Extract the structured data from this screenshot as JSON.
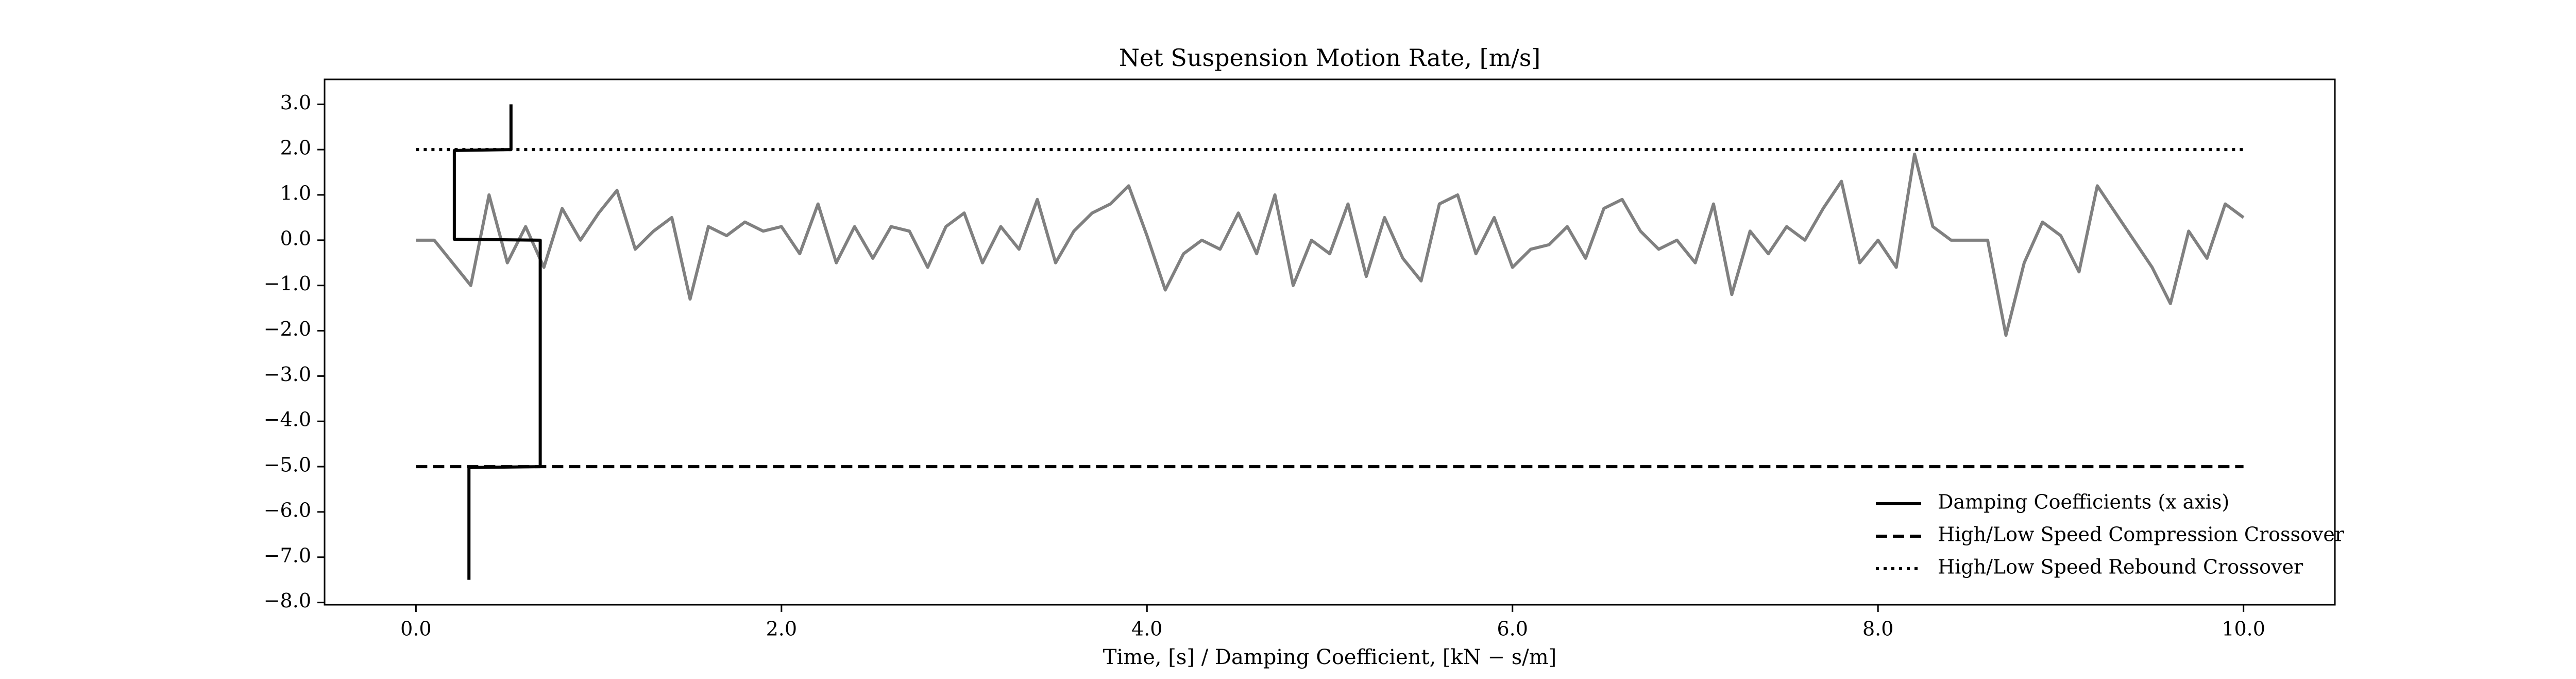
{
  "chart_data": {
    "type": "line",
    "title": "Net Suspension Motion Rate, [m/s]",
    "x_label": "Time, [s] / Damping Coefficient, [kN − s/m]",
    "xlim": [
      -0.5,
      10.5
    ],
    "ylim": [
      -8.05,
      3.55
    ],
    "xticks": [
      {
        "value": 0,
        "label": "0.0"
      },
      {
        "value": 2,
        "label": "2.0"
      },
      {
        "value": 4,
        "label": "4.0"
      },
      {
        "value": 6,
        "label": "6.0"
      },
      {
        "value": 8,
        "label": "8.0"
      },
      {
        "value": 10,
        "label": "10.0"
      }
    ],
    "yticks": [
      {
        "value": 3,
        "label": "3.0"
      },
      {
        "value": 2,
        "label": "2.0"
      },
      {
        "value": 1,
        "label": "1.0"
      },
      {
        "value": 0,
        "label": "0.0"
      },
      {
        "value": -1,
        "label": "−1.0"
      },
      {
        "value": -2,
        "label": "−2.0"
      },
      {
        "value": -3,
        "label": "−3.0"
      },
      {
        "value": -4,
        "label": "−4.0"
      },
      {
        "value": -5,
        "label": "−5.0"
      },
      {
        "value": -6,
        "label": "−6.0"
      },
      {
        "value": -7,
        "label": "−7.0"
      },
      {
        "value": -8,
        "label": "−8.0"
      }
    ],
    "legend": "lower right",
    "series": [
      {
        "color": "#808080",
        "style": "solid",
        "x": [
          0.0,
          0.1,
          0.2,
          0.3,
          0.4,
          0.5,
          0.6,
          0.7,
          0.8,
          0.9,
          1.0,
          1.1,
          1.2,
          1.3,
          1.4,
          1.5,
          1.6,
          1.7,
          1.8,
          1.9,
          2.0,
          2.1,
          2.2,
          2.3,
          2.4,
          2.5,
          2.6,
          2.7,
          2.8,
          2.9,
          3.0,
          3.1,
          3.2,
          3.3,
          3.4,
          3.5,
          3.6,
          3.7,
          3.8,
          3.9,
          4.0,
          4.1,
          4.2,
          4.3,
          4.4,
          4.5,
          4.6,
          4.7,
          4.8,
          4.9,
          5.0,
          5.1,
          5.2,
          5.3,
          5.4,
          5.5,
          5.6,
          5.7,
          5.8,
          5.9,
          6.0,
          6.1,
          6.2,
          6.3,
          6.4,
          6.5,
          6.6,
          6.7,
          6.8,
          6.9,
          7.0,
          7.1,
          7.2,
          7.3,
          7.4,
          7.5,
          7.6,
          7.7,
          7.8,
          7.9,
          8.0,
          8.1,
          8.2,
          8.3,
          8.4,
          8.5,
          8.6,
          8.7,
          8.8,
          8.9,
          9.0,
          9.1,
          9.2,
          9.3,
          9.4,
          9.5,
          9.6,
          9.7,
          9.8,
          9.9,
          10.0
        ],
        "values": [
          0.0,
          0.0,
          -0.5,
          -1.0,
          1.0,
          -0.5,
          0.3,
          -0.6,
          0.7,
          0.0,
          0.6,
          1.1,
          -0.2,
          0.2,
          0.5,
          -1.3,
          0.3,
          0.1,
          0.4,
          0.2,
          0.3,
          -0.3,
          0.8,
          -0.5,
          0.3,
          -0.4,
          0.3,
          0.2,
          -0.6,
          0.3,
          0.6,
          -0.5,
          0.3,
          -0.2,
          0.9,
          -0.5,
          0.2,
          0.6,
          0.8,
          1.2,
          0.1,
          -1.1,
          -0.3,
          0.0,
          -0.2,
          0.6,
          -0.3,
          1.0,
          -1.0,
          0.0,
          -0.3,
          0.8,
          -0.8,
          0.5,
          -0.4,
          -0.9,
          0.8,
          1.0,
          -0.3,
          0.5,
          -0.6,
          -0.2,
          -0.1,
          0.3,
          -0.4,
          0.7,
          0.9,
          0.2,
          -0.2,
          0.0,
          -0.5,
          0.8,
          -1.2,
          0.2,
          -0.3,
          0.3,
          0.0,
          0.7,
          1.3,
          -0.5,
          0.0,
          -0.6,
          1.9,
          0.3,
          0.0,
          0.0,
          0.0,
          -2.1,
          -0.5,
          0.4,
          0.1,
          -0.7,
          1.2,
          0.6,
          0.0,
          -0.6,
          -1.4,
          0.2,
          -0.4,
          0.8,
          0.5
        ]
      },
      {
        "name": "Damping Coefficients (x axis)",
        "color": "#000000",
        "style": "solid",
        "x": [
          0.52,
          0.52,
          0.21,
          0.21,
          0.68,
          0.68,
          0.29,
          0.29
        ],
        "values": [
          3.0,
          2.0,
          1.98,
          0.02,
          0.0,
          -5.0,
          -5.02,
          -7.5
        ]
      },
      {
        "name": "High/Low Speed Compression Crossover",
        "color": "#000000",
        "style": "dashed",
        "x": [
          0,
          10
        ],
        "values": [
          -5,
          -5
        ]
      },
      {
        "name": "High/Low Speed Rebound Crossover",
        "color": "#000000",
        "style": "dotted",
        "x": [
          0,
          10
        ],
        "values": [
          2,
          2
        ]
      }
    ]
  }
}
